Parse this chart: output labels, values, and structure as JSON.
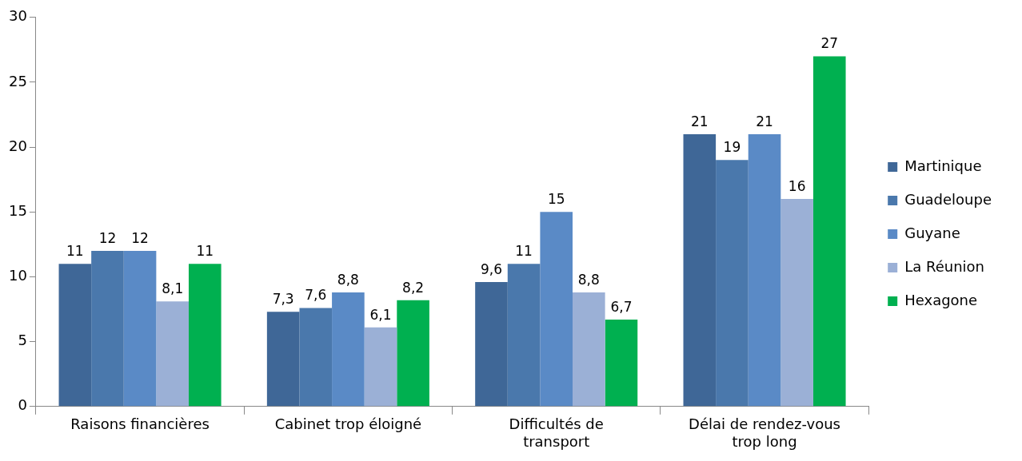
{
  "chart_data": {
    "type": "bar",
    "categories": [
      "Raisons financières",
      "Cabinet trop éloigné",
      "Difficultés de transport",
      "Délai de rendez-vous trop long"
    ],
    "series": [
      {
        "name": "Martinique",
        "color": "#3f6797",
        "values": [
          11,
          7.3,
          9.6,
          21
        ],
        "value_labels": [
          "11",
          "7,3",
          "9,6",
          "21"
        ]
      },
      {
        "name": "Guadeloupe",
        "color": "#4a78ac",
        "values": [
          12,
          7.6,
          11,
          19
        ],
        "value_labels": [
          "12",
          "7,6",
          "11",
          "19"
        ]
      },
      {
        "name": "Guyane",
        "color": "#5a8ac6",
        "values": [
          12,
          8.8,
          15,
          21
        ],
        "value_labels": [
          "12",
          "8,8",
          "15",
          "21"
        ]
      },
      {
        "name": "La Réunion",
        "color": "#9bb0d6",
        "values": [
          8.1,
          6.1,
          8.8,
          16
        ],
        "value_labels": [
          "8,1",
          "6,1",
          "8,8",
          "16"
        ]
      },
      {
        "name": "Hexagone",
        "color": "#00b050",
        "values": [
          11,
          8.2,
          6.7,
          27
        ],
        "value_labels": [
          "11",
          "8,2",
          "6,7",
          "27"
        ]
      }
    ],
    "ylim": [
      0,
      30
    ],
    "yticks": [
      0,
      5,
      10,
      15,
      20,
      25,
      30
    ],
    "grid": false,
    "legend": "right"
  }
}
